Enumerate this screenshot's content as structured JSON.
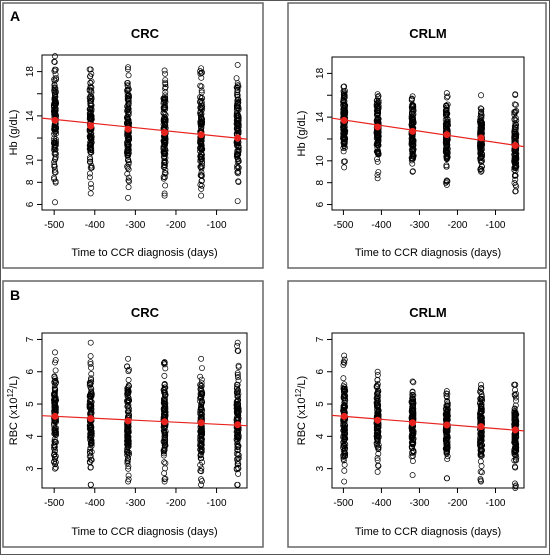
{
  "panel_labels": [
    "A",
    "B"
  ],
  "chart_data": [
    {
      "type": "scatter",
      "panel": "A",
      "title": "CRC",
      "xlabel": "Time to CCR diagnosis (days)",
      "ylabel": "Hb (g/dL)",
      "xlim": [
        -530,
        -25
      ],
      "ylim": [
        5.5,
        19.5
      ],
      "xticks": [
        -500,
        -400,
        -300,
        -200,
        -100
      ],
      "yticks": [
        6,
        8,
        10,
        14,
        18
      ],
      "yticks_minor_unlabeled": [
        12,
        16
      ],
      "x_groups": [
        -498,
        -410,
        -318,
        -228,
        -138,
        -48
      ],
      "groups": [
        {
          "x": -498,
          "min": 6.2,
          "max": 19.4,
          "mean": 13.6
        },
        {
          "x": -410,
          "min": 7.0,
          "max": 18.2,
          "mean": 13.1
        },
        {
          "x": -318,
          "min": 6.6,
          "max": 18.4,
          "mean": 12.8
        },
        {
          "x": -228,
          "min": 6.8,
          "max": 18.1,
          "mean": 12.5
        },
        {
          "x": -138,
          "min": 6.8,
          "max": 18.3,
          "mean": 12.3
        },
        {
          "x": -48,
          "min": 6.3,
          "max": 18.6,
          "mean": 12.0
        }
      ],
      "trend": {
        "x": [
          -530,
          -25
        ],
        "y": [
          13.8,
          11.9
        ],
        "color": "#e8231e"
      },
      "point_color": "#000000"
    },
    {
      "type": "scatter",
      "panel": "A",
      "title": "CRLM",
      "xlabel": "Time to CCR diagnosis (days)",
      "ylabel": "Hb (g/dL)",
      "xlim": [
        -530,
        -25
      ],
      "ylim": [
        5.5,
        19.5
      ],
      "xticks": [
        -500,
        -400,
        -300,
        -200,
        -100
      ],
      "yticks": [
        6,
        8,
        10,
        14,
        18
      ],
      "yticks_minor_unlabeled": [
        12,
        16
      ],
      "x_groups": [
        -498,
        -410,
        -318,
        -228,
        -138,
        -48
      ],
      "groups": [
        {
          "x": -498,
          "min": 9.4,
          "max": 16.8,
          "mean": 13.7
        },
        {
          "x": -410,
          "min": 8.4,
          "max": 16.1,
          "mean": 13.1
        },
        {
          "x": -318,
          "min": 9.0,
          "max": 15.9,
          "mean": 12.7
        },
        {
          "x": -228,
          "min": 7.8,
          "max": 16.2,
          "mean": 12.4
        },
        {
          "x": -138,
          "min": 9.0,
          "max": 16.0,
          "mean": 12.1
        },
        {
          "x": -48,
          "min": 7.2,
          "max": 16.1,
          "mean": 11.4
        }
      ],
      "trend": {
        "x": [
          -530,
          -25
        ],
        "y": [
          13.9,
          11.3
        ],
        "color": "#e8231e"
      },
      "point_color": "#000000"
    },
    {
      "type": "scatter",
      "panel": "B",
      "title": "CRC",
      "xlabel": "Time to CCR diagnosis (days)",
      "ylabel": "RBC (x10",
      "ylabel_sup": "12",
      "ylabel_end": "/L)",
      "xlim": [
        -530,
        -25
      ],
      "ylim": [
        2.4,
        7.2
      ],
      "xticks": [
        -500,
        -400,
        -300,
        -200,
        -100
      ],
      "yticks": [
        3,
        4,
        5,
        6,
        7
      ],
      "x_groups": [
        -498,
        -410,
        -318,
        -228,
        -138,
        -48
      ],
      "groups": [
        {
          "x": -498,
          "min": 3.0,
          "max": 6.6,
          "mean": 4.62
        },
        {
          "x": -410,
          "min": 2.5,
          "max": 6.9,
          "mean": 4.55
        },
        {
          "x": -318,
          "min": 2.6,
          "max": 6.4,
          "mean": 4.48
        },
        {
          "x": -228,
          "min": 2.6,
          "max": 6.3,
          "mean": 4.45
        },
        {
          "x": -138,
          "min": 2.5,
          "max": 6.4,
          "mean": 4.42
        },
        {
          "x": -48,
          "min": 2.5,
          "max": 6.9,
          "mean": 4.36
        }
      ],
      "trend": {
        "x": [
          -530,
          -25
        ],
        "y": [
          4.64,
          4.33
        ],
        "color": "#e8231e"
      },
      "point_color": "#000000"
    },
    {
      "type": "scatter",
      "panel": "B",
      "title": "CRLM",
      "xlabel": "Time to CCR diagnosis (days)",
      "ylabel": "RBC (x10",
      "ylabel_sup": "12",
      "ylabel_end": "/L)",
      "xlim": [
        -530,
        -25
      ],
      "ylim": [
        2.4,
        7.2
      ],
      "xticks": [
        -500,
        -400,
        -300,
        -200,
        -100
      ],
      "yticks": [
        3,
        4,
        5,
        6,
        7
      ],
      "x_groups": [
        -498,
        -410,
        -318,
        -228,
        -138,
        -48
      ],
      "groups": [
        {
          "x": -498,
          "min": 2.6,
          "max": 6.5,
          "mean": 4.62
        },
        {
          "x": -410,
          "min": 2.9,
          "max": 6.0,
          "mean": 4.5
        },
        {
          "x": -318,
          "min": 2.8,
          "max": 5.7,
          "mean": 4.42
        },
        {
          "x": -228,
          "min": 2.7,
          "max": 5.4,
          "mean": 4.35
        },
        {
          "x": -138,
          "min": 2.6,
          "max": 5.6,
          "mean": 4.3
        },
        {
          "x": -48,
          "min": 2.4,
          "max": 5.6,
          "mean": 4.2
        }
      ],
      "trend": {
        "x": [
          -530,
          -25
        ],
        "y": [
          4.65,
          4.17
        ],
        "color": "#e8231e"
      },
      "point_color": "#000000"
    }
  ]
}
